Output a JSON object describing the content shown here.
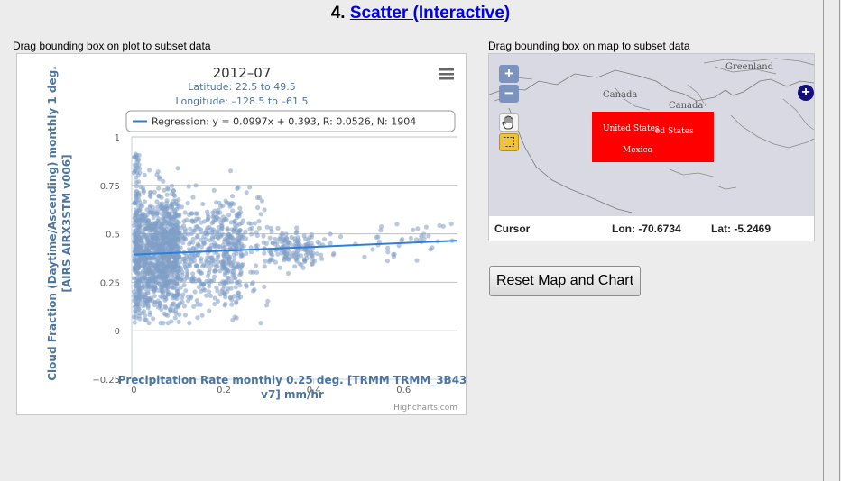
{
  "heading": {
    "number": "4.",
    "link": "Scatter (Interactive)"
  },
  "plot_caption": "Drag bounding box on plot to subset data",
  "map_caption": "Drag bounding box on map to subset data",
  "colors": {
    "points": "#7f9ec7",
    "regression": "#2f7ed8",
    "axis_title": "#4d759e",
    "bbox": "#ff0000"
  },
  "chart_data": {
    "type": "scatter",
    "title": "2012–07",
    "subtitle_lines": [
      "Latitude: 22.5 to 49.5",
      "Longitude: –128.5 to –61.5"
    ],
    "legend": "Regression: y = 0.0997x + 0.393, R: 0.0526, N: 1904",
    "xlabel": [
      "Precipitation Rate monthly 0.25 deg. [TRMM TRMM_3B43",
      "v7] mm/hr"
    ],
    "ylabel": [
      "Cloud Fraction (Daytime/Ascending) monthly 1 deg.",
      "[AIRS AIRX3STM v006]"
    ],
    "xlim": [
      -0.005,
      0.72
    ],
    "ylim": [
      -0.25,
      1
    ],
    "x_ticks": [
      0,
      0.2,
      0.4,
      0.6
    ],
    "x_tick_labels": [
      "0",
      "0.2",
      "0.4",
      "0.6"
    ],
    "y_ticks": [
      -0.25,
      0,
      0.25,
      0.5,
      0.75,
      1
    ],
    "y_tick_labels": [
      "−0.25",
      "0",
      "0.25",
      "0.5",
      "0.75",
      "1"
    ],
    "grid": true,
    "regression": {
      "slope": 0.0997,
      "intercept": 0.393
    },
    "n_points": 1904,
    "credits": "Highcharts.com"
  },
  "map": {
    "labels": [
      "Greenland",
      "Canada",
      "Canada",
      "United States",
      "ed States",
      "Mexico"
    ],
    "zoom_in": "+",
    "zoom_out": "−",
    "add_layer": "+"
  },
  "cursor": {
    "label": "Cursor",
    "lon": "Lon: -70.6734",
    "lat": "Lat: -5.2469"
  },
  "reset_button": "Reset Map and Chart"
}
